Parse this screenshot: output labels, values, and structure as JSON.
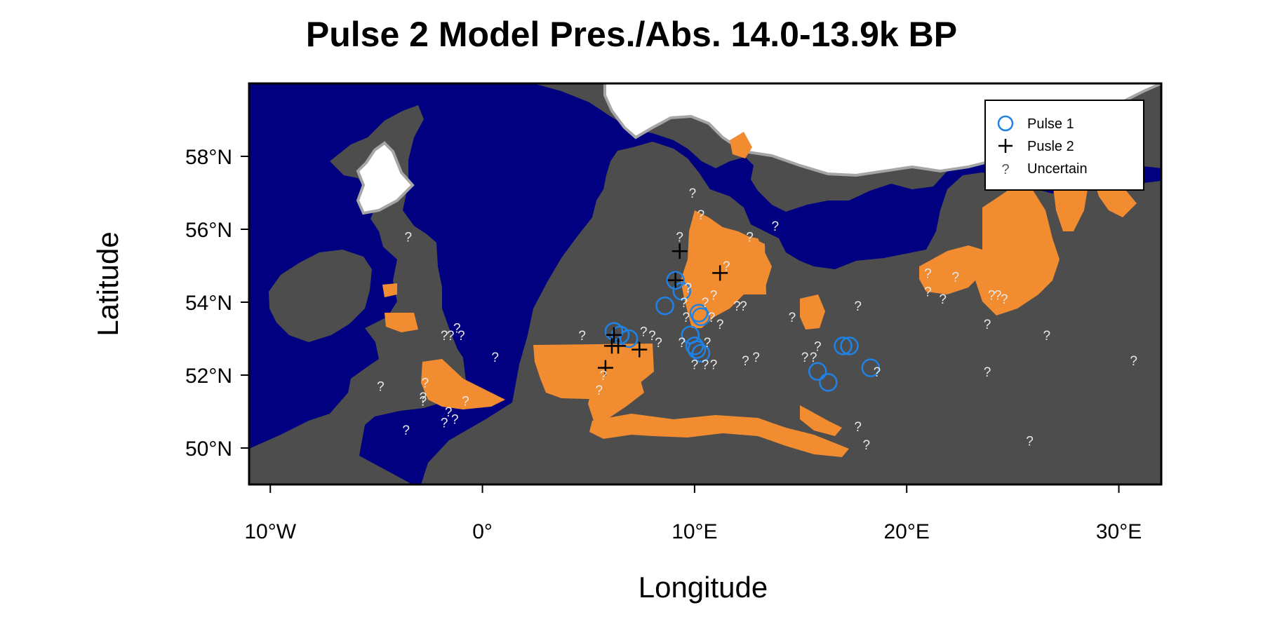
{
  "title": "Pulse 2 Model Pres./Abs. 14.0-13.9k BP",
  "colors": {
    "sea": "#000080",
    "land": "#4d4d4d",
    "ice": "#ffffff",
    "ice_edge": "#a6a6a6",
    "presence": "#f28c30",
    "pulse1": "#1e82e6",
    "pulse2": "#000000",
    "uncertain": "#e8e8e8"
  },
  "chart_data": {
    "type": "map",
    "xlabel": "Longitude",
    "ylabel": "Latitude",
    "xlim": [
      -11,
      32
    ],
    "ylim": [
      49,
      60
    ],
    "x_ticks": [
      {
        "value": -10,
        "label": "10°W"
      },
      {
        "value": 0,
        "label": "0°"
      },
      {
        "value": 10,
        "label": "10°E"
      },
      {
        "value": 20,
        "label": "20°E"
      },
      {
        "value": 30,
        "label": "30°E"
      }
    ],
    "y_ticks": [
      {
        "value": 50,
        "label": "50°N"
      },
      {
        "value": 52,
        "label": "52°N"
      },
      {
        "value": 54,
        "label": "54°N"
      },
      {
        "value": 56,
        "label": "56°N"
      },
      {
        "value": 58,
        "label": "58°N"
      }
    ],
    "legend": {
      "position": "top-right",
      "entries": [
        {
          "key": "pulse1",
          "label": "Pulse 1",
          "symbol": "circle"
        },
        {
          "key": "pulse2",
          "label": "Pusle 2",
          "symbol": "plus"
        },
        {
          "key": "uncertain",
          "label": "Uncertain",
          "symbol": "?"
        }
      ]
    },
    "series": [
      {
        "name": "Pulse 1",
        "symbol": "circle",
        "points": [
          [
            9.1,
            54.6
          ],
          [
            9.4,
            54.3
          ],
          [
            8.6,
            53.9
          ],
          [
            10.2,
            53.7
          ],
          [
            10.3,
            53.6
          ],
          [
            6.2,
            53.2
          ],
          [
            6.5,
            53.1
          ],
          [
            6.9,
            53.0
          ],
          [
            9.8,
            53.1
          ],
          [
            10.0,
            52.8
          ],
          [
            10.1,
            52.7
          ],
          [
            10.3,
            52.6
          ],
          [
            17.0,
            52.8
          ],
          [
            17.3,
            52.8
          ],
          [
            15.8,
            52.1
          ],
          [
            18.3,
            52.2
          ],
          [
            16.3,
            51.8
          ]
        ]
      },
      {
        "name": "Pusle 2",
        "symbol": "plus",
        "points": [
          [
            9.3,
            55.4
          ],
          [
            11.2,
            54.8
          ],
          [
            9.1,
            54.6
          ],
          [
            6.2,
            53.1
          ],
          [
            6.1,
            52.8
          ],
          [
            6.4,
            52.8
          ],
          [
            7.4,
            52.7
          ],
          [
            5.8,
            52.2
          ]
        ]
      },
      {
        "name": "Uncertain",
        "symbol": "?",
        "points": [
          [
            9.9,
            57.0
          ],
          [
            10.3,
            56.4
          ],
          [
            13.8,
            56.1
          ],
          [
            -3.5,
            55.8
          ],
          [
            9.3,
            55.8
          ],
          [
            12.6,
            55.8
          ],
          [
            11.5,
            55.0
          ],
          [
            21.0,
            54.8
          ],
          [
            22.3,
            54.7
          ],
          [
            21.0,
            54.3
          ],
          [
            21.7,
            54.1
          ],
          [
            10.9,
            54.2
          ],
          [
            9.7,
            54.4
          ],
          [
            9.5,
            54.0
          ],
          [
            10.5,
            54.0
          ],
          [
            12.0,
            53.9
          ],
          [
            12.3,
            53.9
          ],
          [
            17.7,
            53.9
          ],
          [
            24.0,
            54.2
          ],
          [
            24.3,
            54.2
          ],
          [
            24.6,
            54.1
          ],
          [
            14.6,
            53.6
          ],
          [
            9.6,
            53.6
          ],
          [
            10.8,
            53.6
          ],
          [
            11.2,
            53.4
          ],
          [
            23.8,
            53.4
          ],
          [
            26.6,
            53.1
          ],
          [
            -1.2,
            53.3
          ],
          [
            -1.5,
            53.1
          ],
          [
            -1.0,
            53.1
          ],
          [
            -1.8,
            53.1
          ],
          [
            4.7,
            53.1
          ],
          [
            7.6,
            53.2
          ],
          [
            8.0,
            53.1
          ],
          [
            8.3,
            52.9
          ],
          [
            9.4,
            52.9
          ],
          [
            10.6,
            52.9
          ],
          [
            10.0,
            52.3
          ],
          [
            10.5,
            52.3
          ],
          [
            10.9,
            52.3
          ],
          [
            12.4,
            52.4
          ],
          [
            12.9,
            52.5
          ],
          [
            0.6,
            52.5
          ],
          [
            15.2,
            52.5
          ],
          [
            15.6,
            52.5
          ],
          [
            15.8,
            52.8
          ],
          [
            5.7,
            52.0
          ],
          [
            5.5,
            51.6
          ],
          [
            30.7,
            52.4
          ],
          [
            23.8,
            52.1
          ],
          [
            18.6,
            52.1
          ],
          [
            -4.8,
            51.7
          ],
          [
            -2.7,
            51.8
          ],
          [
            -2.8,
            51.4
          ],
          [
            -2.8,
            51.3
          ],
          [
            -0.8,
            51.3
          ],
          [
            -1.6,
            51.0
          ],
          [
            -1.3,
            50.8
          ],
          [
            -1.8,
            50.7
          ],
          [
            -3.6,
            50.5
          ],
          [
            17.7,
            50.6
          ],
          [
            18.1,
            50.1
          ],
          [
            25.8,
            50.2
          ]
        ]
      }
    ],
    "layers": [
      {
        "name": "sea",
        "description_color": "sea"
      },
      {
        "name": "land",
        "description_color": "land"
      },
      {
        "name": "ice",
        "description_color": "ice"
      },
      {
        "name": "presence",
        "description_color": "presence"
      }
    ]
  }
}
